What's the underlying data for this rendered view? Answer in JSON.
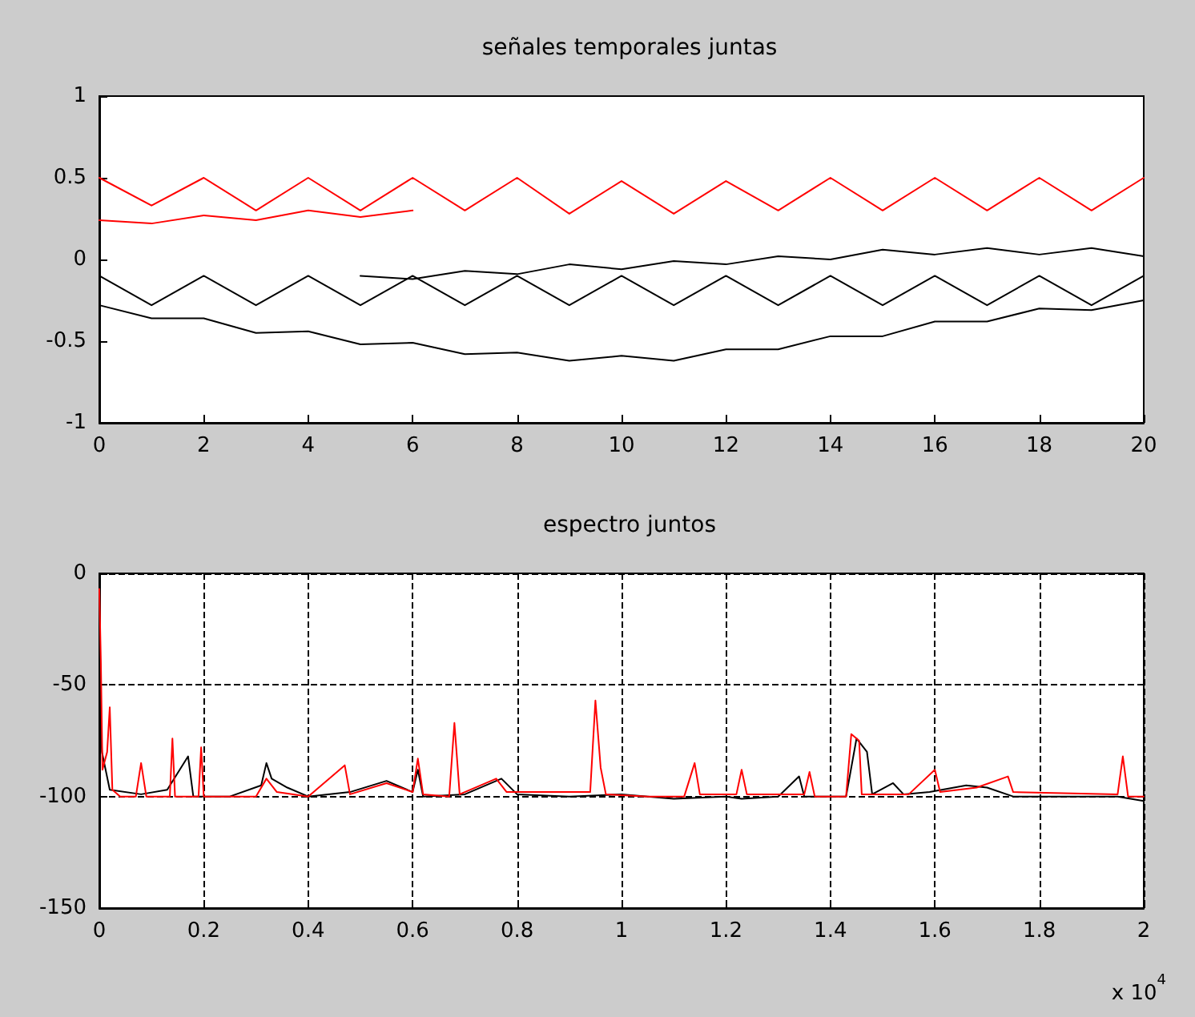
{
  "chart_data": [
    {
      "type": "line",
      "title": "señales temporales juntas",
      "xlim": [
        0,
        20
      ],
      "xticks": [
        0,
        2,
        4,
        6,
        8,
        10,
        12,
        14,
        16,
        18,
        20
      ],
      "ylim": [
        -1,
        1
      ],
      "yticks": [
        -1,
        -0.5,
        0,
        0.5,
        1
      ],
      "marker": "none",
      "line_style": "solid",
      "series": [
        {
          "color": "#000000",
          "x": [
            0,
            1,
            2,
            3,
            4,
            5,
            6,
            7,
            8,
            9,
            10,
            11,
            12,
            13,
            14,
            15,
            16,
            17,
            18,
            19,
            20
          ],
          "values": [
            -0.1,
            -0.28,
            -0.1,
            -0.28,
            -0.1,
            -0.28,
            -0.1,
            -0.28,
            -0.1,
            -0.28,
            -0.1,
            -0.28,
            -0.1,
            -0.28,
            -0.1,
            -0.28,
            -0.1,
            -0.28,
            -0.1,
            -0.28,
            -0.1
          ]
        },
        {
          "color": "#000000",
          "x": [
            0,
            1,
            2,
            3,
            4,
            5,
            6,
            7,
            8,
            9,
            10,
            11,
            12,
            13,
            14,
            15,
            16,
            17,
            18,
            19,
            20
          ],
          "values": [
            -0.28,
            -0.36,
            -0.36,
            -0.45,
            -0.44,
            -0.52,
            -0.51,
            -0.58,
            -0.57,
            -0.62,
            -0.59,
            -0.62,
            -0.55,
            -0.55,
            -0.47,
            -0.47,
            -0.38,
            -0.38,
            -0.3,
            -0.31,
            -0.25
          ]
        },
        {
          "color": "#000000",
          "x": [
            5,
            6,
            7,
            8,
            9,
            10,
            11,
            12,
            13,
            14,
            15,
            16,
            17,
            18,
            19,
            20
          ],
          "values": [
            -0.1,
            -0.12,
            -0.07,
            -0.09,
            -0.03,
            -0.06,
            -0.01,
            -0.03,
            0.02,
            0,
            0.06,
            0.03,
            0.07,
            0.03,
            0.07,
            0.02
          ]
        },
        {
          "color": "#ff0000",
          "x": [
            0,
            1,
            2,
            3,
            4,
            5,
            6,
            7,
            8,
            9,
            10,
            11,
            12,
            13,
            14,
            15,
            16,
            17,
            18,
            19,
            20
          ],
          "values": [
            0.5,
            0.33,
            0.5,
            0.3,
            0.5,
            0.3,
            0.5,
            0.3,
            0.5,
            0.28,
            0.48,
            0.28,
            0.48,
            0.3,
            0.5,
            0.3,
            0.5,
            0.3,
            0.5,
            0.3,
            0.5
          ]
        },
        {
          "color": "#ff0000",
          "x": [
            0,
            1,
            2,
            3,
            4,
            5,
            6
          ],
          "values": [
            0.24,
            0.22,
            0.27,
            0.24,
            0.3,
            0.26,
            0.3
          ]
        }
      ]
    },
    {
      "type": "line",
      "title": "espectro juntos",
      "xlim": [
        0,
        2
      ],
      "xticks": [
        0,
        0.2,
        0.4,
        0.6,
        0.8,
        1,
        1.2,
        1.4,
        1.6,
        1.8,
        2
      ],
      "ylim": [
        -150,
        0
      ],
      "yticks": [
        -150,
        -100,
        -50,
        0
      ],
      "grid": true,
      "marker": "none",
      "line_style": "solid",
      "annotations": [
        "x 10$^{4}$"
      ],
      "series": [
        {
          "color": "#000000",
          "x": [
            0,
            0.005,
            0.02,
            0.08,
            0.13,
            0.17,
            0.18,
            0.25,
            0.31,
            0.32,
            0.33,
            0.36,
            0.4,
            0.48,
            0.55,
            0.6,
            0.61,
            0.62,
            0.7,
            0.77,
            0.8,
            0.9,
            1,
            1.1,
            1.2,
            1.23,
            1.3,
            1.34,
            1.35,
            1.43,
            1.45,
            1.47,
            1.48,
            1.52,
            1.54,
            1.59,
            1.66,
            1.7,
            1.75,
            1.85,
            1.95,
            2
          ],
          "values": [
            -45,
            -80,
            -97,
            -99,
            -97,
            -82,
            -100,
            -100,
            -95,
            -85,
            -92,
            -96,
            -100,
            -98,
            -93,
            -98,
            -88,
            -100,
            -99,
            -92,
            -99,
            -100,
            -99,
            -101,
            -100,
            -101,
            -100,
            -91,
            -100,
            -100,
            -74,
            -80,
            -99,
            -94,
            -99,
            -98,
            -95,
            -96,
            -100,
            -100,
            -100,
            -102
          ]
        },
        {
          "color": "#ff0000",
          "x": [
            0,
            0.003,
            0.006,
            0.015,
            0.02,
            0.025,
            0.04,
            0.07,
            0.08,
            0.09,
            0.135,
            0.14,
            0.145,
            0.19,
            0.195,
            0.2,
            0.3,
            0.32,
            0.34,
            0.4,
            0.47,
            0.48,
            0.55,
            0.6,
            0.61,
            0.62,
            0.67,
            0.68,
            0.69,
            0.76,
            0.78,
            0.94,
            0.95,
            0.96,
            0.97,
            1.05,
            1.12,
            1.14,
            1.15,
            1.22,
            1.23,
            1.24,
            1.35,
            1.36,
            1.37,
            1.43,
            1.44,
            1.455,
            1.46,
            1.55,
            1.6,
            1.61,
            1.68,
            1.74,
            1.75,
            1.95,
            1.96,
            1.97,
            2
          ],
          "values": [
            -7,
            -40,
            -88,
            -80,
            -60,
            -97,
            -100,
            -100,
            -85,
            -100,
            -100,
            -74,
            -100,
            -100,
            -78,
            -100,
            -100,
            -92,
            -98,
            -100,
            -86,
            -99,
            -94,
            -98,
            -83,
            -99,
            -100,
            -67,
            -99,
            -92,
            -98,
            -98,
            -57,
            -87,
            -99,
            -100,
            -100,
            -85,
            -99,
            -99,
            -88,
            -99,
            -99,
            -89,
            -100,
            -100,
            -72,
            -75,
            -99,
            -99,
            -88,
            -98,
            -96,
            -91,
            -98,
            -99,
            -82,
            -100,
            -100
          ]
        }
      ]
    }
  ]
}
